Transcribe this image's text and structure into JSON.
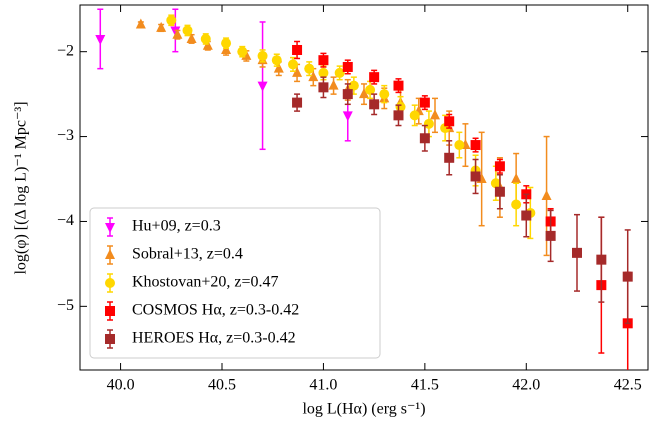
{
  "chart_data": {
    "type": "scatter",
    "xlabel": "log L(Hα) (erg s⁻¹)",
    "ylabel": "log(φ) [(Δ log L)⁻¹ Mpc⁻³]",
    "xlim": [
      39.8,
      42.6
    ],
    "ylim": [
      -5.75,
      -1.45
    ],
    "xticks": [
      {
        "value": 40,
        "label": "40.0"
      },
      {
        "value": 40.5,
        "label": "40.5"
      },
      {
        "value": 41,
        "label": "41.0"
      },
      {
        "value": 41.5,
        "label": "41.5"
      },
      {
        "value": 42,
        "label": "42.0"
      },
      {
        "value": 42.5,
        "label": "42.5"
      }
    ],
    "yticks": [
      {
        "value": -2,
        "label": "−2"
      },
      {
        "value": -3,
        "label": "−3"
      },
      {
        "value": -4,
        "label": "−4"
      },
      {
        "value": -5,
        "label": "−5"
      }
    ],
    "legend": "lower left",
    "series": [
      {
        "name": "Hu+09, z=0.3",
        "color": "#ff00ff",
        "marker": "triangle-down",
        "x": [
          39.9,
          40.27,
          40.7,
          41.12
        ],
        "values": [
          -1.85,
          -1.75,
          -2.4,
          -2.75
        ],
        "errors": [
          0.35,
          0.25,
          0.75,
          0.3
        ]
      },
      {
        "name": "Sobral+13, z=0.4",
        "color": "#f28c1e",
        "marker": "triangle-up",
        "x": [
          40.1,
          40.2,
          40.28,
          40.35,
          40.43,
          40.52,
          40.62,
          40.7,
          40.78,
          40.87,
          40.95,
          41.05,
          41.12,
          41.2,
          41.3,
          41.38,
          41.47,
          41.55,
          41.62,
          41.7,
          41.78,
          41.87,
          41.95,
          42.1
        ],
        "values": [
          -1.68,
          -1.72,
          -1.8,
          -1.85,
          -1.93,
          -1.98,
          -2.05,
          -2.1,
          -2.2,
          -2.25,
          -2.3,
          -2.4,
          -2.45,
          -2.5,
          -2.55,
          -2.6,
          -2.7,
          -2.75,
          -2.9,
          -3.1,
          -3.5,
          -3.6,
          -3.5,
          -3.7
        ],
        "errors": [
          0.03,
          0.04,
          0.05,
          0.05,
          0.05,
          0.06,
          0.06,
          0.08,
          0.08,
          0.1,
          0.1,
          0.1,
          0.12,
          0.12,
          0.12,
          0.15,
          0.15,
          0.2,
          0.2,
          0.25,
          0.55,
          0.35,
          0.3,
          0.7
        ]
      },
      {
        "name": "Khostovan+20, z=0.47",
        "color": "#ffd700",
        "marker": "circle",
        "x": [
          40.25,
          40.33,
          40.42,
          40.52,
          40.6,
          40.7,
          40.77,
          40.85,
          40.93,
          41.0,
          41.08,
          41.15,
          41.23,
          41.3,
          41.38,
          41.45,
          41.52,
          41.6,
          41.67,
          41.75,
          41.85,
          41.95,
          42.02
        ],
        "values": [
          -1.63,
          -1.75,
          -1.85,
          -1.9,
          -2.0,
          -2.05,
          -2.1,
          -2.15,
          -2.2,
          -2.25,
          -2.25,
          -2.4,
          -2.45,
          -2.5,
          -2.65,
          -2.75,
          -2.85,
          -2.9,
          -3.1,
          -3.4,
          -3.55,
          -3.8,
          -3.9
        ],
        "errors": [
          0.06,
          0.06,
          0.06,
          0.06,
          0.06,
          0.07,
          0.07,
          0.08,
          0.08,
          0.08,
          0.08,
          0.1,
          0.1,
          0.1,
          0.12,
          0.12,
          0.15,
          0.15,
          0.15,
          0.18,
          0.2,
          0.25,
          0.3
        ]
      },
      {
        "name": "COSMOS Hα, z=0.3-0.42",
        "color": "#ff0000",
        "marker": "square",
        "x": [
          40.87,
          41.0,
          41.12,
          41.25,
          41.37,
          41.5,
          41.62,
          41.75,
          41.87,
          42.0,
          42.12,
          42.37,
          42.5
        ],
        "values": [
          -1.98,
          -2.1,
          -2.18,
          -2.3,
          -2.4,
          -2.6,
          -2.82,
          -3.1,
          -3.35,
          -3.68,
          -4.0,
          -4.75,
          -5.2
        ],
        "errors": [
          0.1,
          0.08,
          0.08,
          0.08,
          0.08,
          0.08,
          0.08,
          0.08,
          0.08,
          0.1,
          0.15,
          0.8,
          0.6
        ]
      },
      {
        "name": "HEROES Hα, z=0.3-0.42",
        "color": "#a52a2a",
        "marker": "square",
        "x": [
          40.87,
          41.0,
          41.12,
          41.25,
          41.37,
          41.5,
          41.62,
          41.75,
          41.87,
          42.0,
          42.12,
          42.25,
          42.37,
          42.5
        ],
        "values": [
          -2.6,
          -2.42,
          -2.5,
          -2.62,
          -2.75,
          -3.02,
          -3.25,
          -3.47,
          -3.65,
          -3.93,
          -4.17,
          -4.37,
          -4.45,
          -4.65
        ],
        "errors": [
          0.1,
          0.12,
          0.12,
          0.12,
          0.12,
          0.15,
          0.2,
          0.2,
          0.2,
          0.25,
          0.3,
          0.45,
          0.5,
          0.55
        ]
      }
    ]
  }
}
